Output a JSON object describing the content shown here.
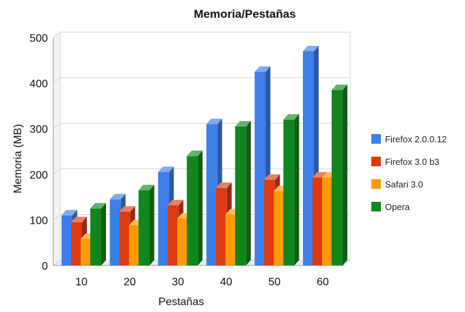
{
  "chart_data": {
    "type": "bar",
    "title": "Memoria/Pestañas",
    "xlabel": "Pestañas",
    "ylabel": "Memoria (MB)",
    "categories": [
      "10",
      "20",
      "30",
      "40",
      "50",
      "60"
    ],
    "ylim": [
      0,
      500
    ],
    "yticks": [
      0,
      100,
      200,
      300,
      400,
      500
    ],
    "grid": true,
    "legend_position": "right",
    "series": [
      {
        "name": "Firefox 2.0.0.12",
        "color": "#3d7ee8",
        "values": [
          110,
          145,
          205,
          310,
          425,
          470
        ]
      },
      {
        "name": "Firefox 3.0 b3",
        "color": "#dd3a12",
        "values": [
          95,
          118,
          132,
          170,
          188,
          193
        ]
      },
      {
        "name": "Safari 3.0",
        "color": "#ff9a00",
        "values": [
          58,
          88,
          103,
          112,
          163,
          193
        ]
      },
      {
        "name": "Opera",
        "color": "#12861e",
        "values": [
          125,
          165,
          240,
          305,
          320,
          385
        ]
      }
    ]
  }
}
